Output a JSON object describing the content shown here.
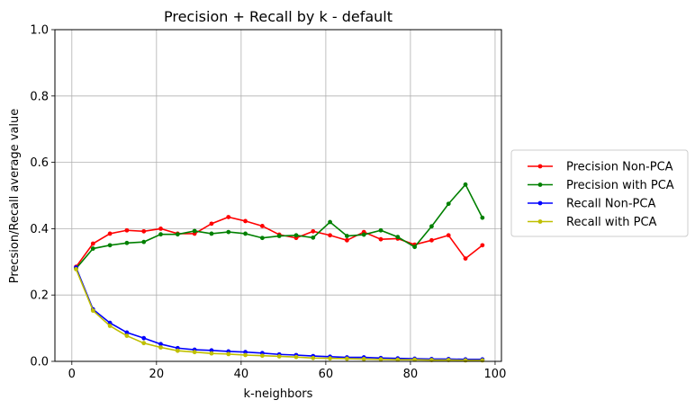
{
  "chart_data": {
    "type": "line",
    "title": "Precision + Recall by k - default",
    "xlabel": "k-neighbors",
    "ylabel": "Precsion/Recall average value",
    "xlim": [
      -4,
      101.5
    ],
    "ylim": [
      0,
      1.0
    ],
    "x_ticks": [
      0,
      20,
      40,
      60,
      80,
      100
    ],
    "y_ticks": [
      0.0,
      0.2,
      0.4,
      0.6,
      0.8,
      1.0
    ],
    "grid": true,
    "legend_position": "outside-right",
    "x": [
      1,
      5,
      9,
      13,
      17,
      21,
      25,
      29,
      33,
      37,
      41,
      45,
      49,
      53,
      57,
      61,
      65,
      69,
      73,
      77,
      81,
      85,
      89,
      93,
      97
    ],
    "series": [
      {
        "name": "Precision Non-PCA",
        "color": "#ff0000",
        "values": [
          0.285,
          0.355,
          0.385,
          0.395,
          0.392,
          0.4,
          0.385,
          0.385,
          0.415,
          0.435,
          0.423,
          0.408,
          0.382,
          0.372,
          0.392,
          0.38,
          0.365,
          0.39,
          0.368,
          0.37,
          0.352,
          0.365,
          0.38,
          0.31,
          0.35
        ]
      },
      {
        "name": "Precision with PCA",
        "color": "#008000",
        "values": [
          0.28,
          0.34,
          0.35,
          0.357,
          0.36,
          0.383,
          0.383,
          0.393,
          0.385,
          0.39,
          0.385,
          0.372,
          0.378,
          0.38,
          0.373,
          0.42,
          0.378,
          0.382,
          0.395,
          0.375,
          0.345,
          0.407,
          0.475,
          0.533,
          0.433
        ]
      },
      {
        "name": "Recall Non-PCA",
        "color": "#0000ff",
        "values": [
          0.283,
          0.157,
          0.116,
          0.087,
          0.07,
          0.052,
          0.04,
          0.035,
          0.033,
          0.03,
          0.028,
          0.025,
          0.021,
          0.019,
          0.016,
          0.014,
          0.012,
          0.012,
          0.01,
          0.009,
          0.008,
          0.007,
          0.007,
          0.006,
          0.006
        ]
      },
      {
        "name": "Recall with PCA",
        "color": "#bfbf00",
        "values": [
          0.278,
          0.153,
          0.107,
          0.077,
          0.055,
          0.042,
          0.032,
          0.028,
          0.024,
          0.022,
          0.019,
          0.017,
          0.015,
          0.013,
          0.01,
          0.009,
          0.008,
          0.007,
          0.006,
          0.005,
          0.005,
          0.004,
          0.004,
          0.003,
          0.003
        ]
      }
    ]
  }
}
